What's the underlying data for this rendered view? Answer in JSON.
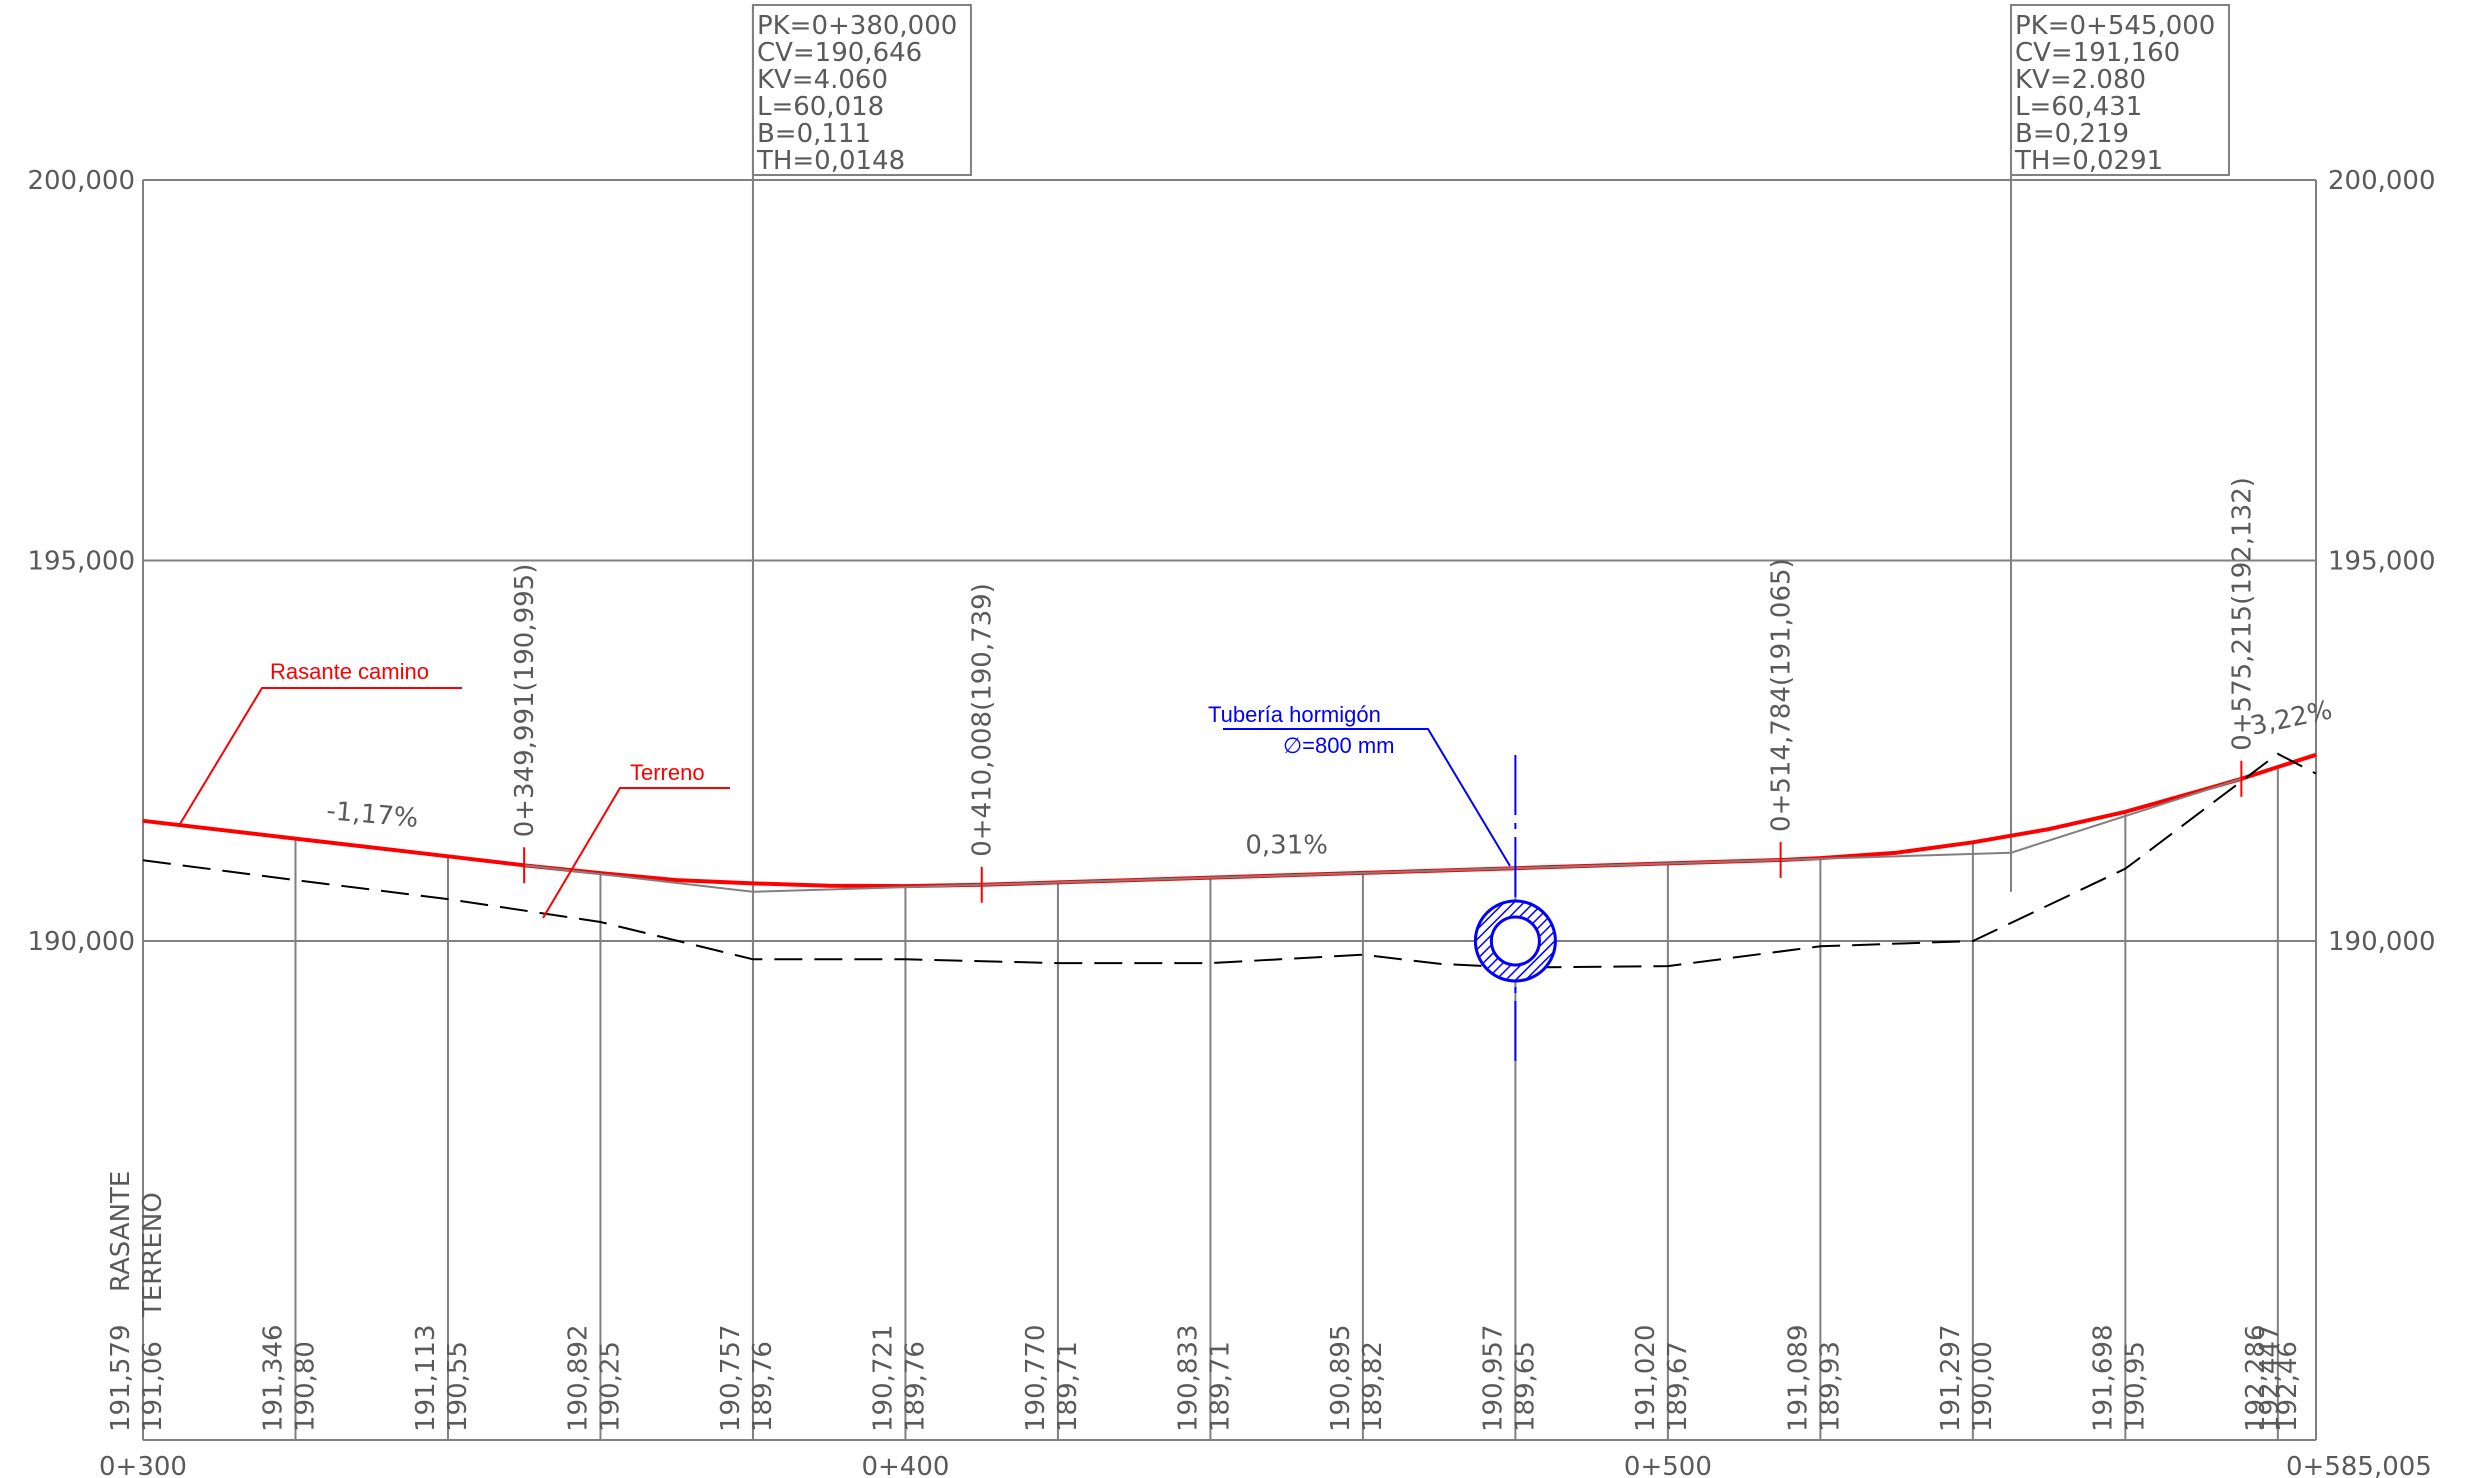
{
  "chart_data": {
    "type": "line",
    "x_range": [
      300,
      585.005
    ],
    "y_range": [
      185.0,
      200.0
    ],
    "y_ticks": [
      {
        "value": 200,
        "label": "200,000"
      },
      {
        "value": 195,
        "label": "195,000"
      },
      {
        "value": 190,
        "label": "190,000"
      }
    ],
    "x_ticks": [
      {
        "value": 300,
        "label": "0+300"
      },
      {
        "value": 400,
        "label": "0+400"
      },
      {
        "value": 500,
        "label": "0+500"
      },
      {
        "value": 585.005,
        "label": "0+585,005"
      }
    ],
    "band_headers": {
      "rasante": "RASANTE",
      "terreno": "TERRENO"
    },
    "stations": [
      {
        "x": 300,
        "rasante": "191,579",
        "terreno": "191,06"
      },
      {
        "x": 320,
        "rasante": "191,346",
        "terreno": "190,80"
      },
      {
        "x": 340,
        "rasante": "191,113",
        "terreno": "190,55"
      },
      {
        "x": 360,
        "rasante": "190,892",
        "terreno": "190,25"
      },
      {
        "x": 380,
        "rasante": "190,757",
        "terreno": "189,76"
      },
      {
        "x": 400,
        "rasante": "190,721",
        "terreno": "189,76"
      },
      {
        "x": 420,
        "rasante": "190,770",
        "terreno": "189,71"
      },
      {
        "x": 440,
        "rasante": "190,833",
        "terreno": "189,71"
      },
      {
        "x": 460,
        "rasante": "190,895",
        "terreno": "189,82"
      },
      {
        "x": 480,
        "rasante": "190,957",
        "terreno": "189,65"
      },
      {
        "x": 500,
        "rasante": "191,020",
        "terreno": "189,67"
      },
      {
        "x": 520,
        "rasante": "191,089",
        "terreno": "189,93"
      },
      {
        "x": 540,
        "rasante": "191,297",
        "terreno": "190,00"
      },
      {
        "x": 560,
        "rasante": "191,698",
        "terreno": "190,95"
      },
      {
        "x": 580,
        "rasante": "192,286",
        "terreno": "192,46"
      },
      {
        "x": 585.005,
        "rasante": "192,447",
        "terreno": ""
      }
    ],
    "series": [
      {
        "name": "Rasante camino",
        "color": "#ff0000",
        "style": "solid",
        "points": [
          [
            300,
            191.579
          ],
          [
            320,
            191.346
          ],
          [
            340,
            191.113
          ],
          [
            349.991,
            190.995
          ],
          [
            360,
            190.892
          ],
          [
            370,
            190.8
          ],
          [
            380,
            190.757
          ],
          [
            390,
            190.727
          ],
          [
            400,
            190.721
          ],
          [
            410.008,
            190.739
          ],
          [
            420,
            190.77
          ],
          [
            440,
            190.833
          ],
          [
            460,
            190.895
          ],
          [
            480,
            190.957
          ],
          [
            500,
            191.02
          ],
          [
            514.784,
            191.065
          ],
          [
            520,
            191.089
          ],
          [
            530,
            191.16
          ],
          [
            540,
            191.297
          ],
          [
            550,
            191.47
          ],
          [
            560,
            191.698
          ],
          [
            570,
            191.98
          ],
          [
            575.215,
            192.132
          ],
          [
            580,
            192.286
          ],
          [
            585.005,
            192.447
          ]
        ]
      },
      {
        "name": "Terreno",
        "color": "#000000",
        "style": "dashed",
        "points": [
          [
            300,
            191.06
          ],
          [
            320,
            190.8
          ],
          [
            340,
            190.55
          ],
          [
            360,
            190.25
          ],
          [
            380,
            189.76
          ],
          [
            400,
            189.76
          ],
          [
            420,
            189.71
          ],
          [
            440,
            189.71
          ],
          [
            460,
            189.82
          ],
          [
            470,
            189.7
          ],
          [
            480,
            189.65
          ],
          [
            500,
            189.67
          ],
          [
            520,
            189.93
          ],
          [
            540,
            190.0
          ],
          [
            560,
            190.95
          ],
          [
            580,
            192.46
          ],
          [
            585.005,
            192.2
          ]
        ]
      },
      {
        "name": "",
        "color": "#808080",
        "style": "solid",
        "points": [
          [
            349.991,
            190.995
          ],
          [
            380,
            190.646
          ],
          [
            410.008,
            190.739
          ],
          [
            514.784,
            191.065
          ],
          [
            545,
            191.16
          ],
          [
            575.215,
            192.132
          ]
        ]
      }
    ],
    "grades": [
      {
        "x": 330,
        "y": 191.55,
        "label": "-1,17%"
      },
      {
        "x": 450,
        "y": 191.15,
        "label": "0,31%"
      },
      {
        "x": 582,
        "y": 192.82,
        "label": "3,22%"
      }
    ],
    "vertical_curves": [
      {
        "pk": "PK=0+380,000",
        "cv": "CV=190,646",
        "kv": "KV=4.060",
        "l": "L=60,018",
        "b": "B=0,111",
        "th": "TH=0,0148",
        "x": 380
      },
      {
        "pk": "PK=0+545,000",
        "cv": "CV=191,160",
        "kv": "KV=2.080",
        "l": "L=60,431",
        "b": "B=0,219",
        "th": "TH=0,0291",
        "x": 545
      }
    ],
    "tangent_points": [
      {
        "x": 349.991,
        "y": 190.995,
        "label": "0+349,991(190,995)"
      },
      {
        "x": 410.008,
        "y": 190.739,
        "label": "0+410,008(190,739)"
      },
      {
        "x": 514.784,
        "y": 191.065,
        "label": "0+514,784(191,065)"
      },
      {
        "x": 575.215,
        "y": 192.132,
        "label": "0+575,215(192,132)"
      }
    ],
    "annotations": {
      "rasante": "Rasante camino",
      "terreno": "Terreno",
      "tuberia_line1": "Tubería hormigón",
      "tuberia_line2": "∅=800 mm"
    },
    "pipe": {
      "x": 480,
      "y": 190.0,
      "diameter_m": 0.8
    },
    "colors": {
      "rasante": "#ff0000",
      "terreno": "#000000",
      "tuberia": "#0000ff",
      "grid": "#808080"
    }
  }
}
